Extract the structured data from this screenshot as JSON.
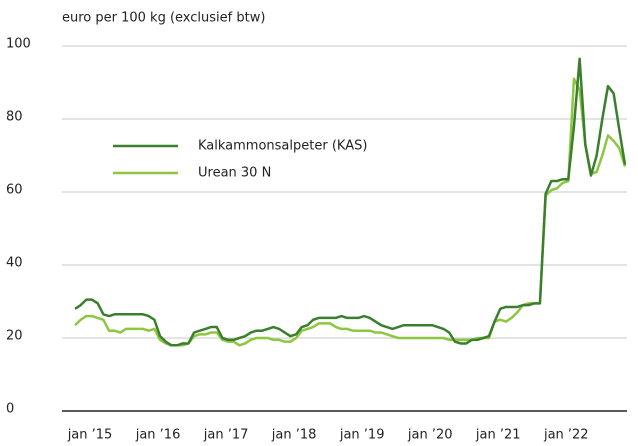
{
  "chart_data": {
    "type": "line",
    "ylabel": "euro per 100 kg (exclusief btw)",
    "categories": [
      "jan ’15",
      null,
      null,
      null,
      null,
      null,
      null,
      null,
      null,
      null,
      null,
      null,
      "jan ’16",
      null,
      null,
      null,
      null,
      null,
      null,
      null,
      null,
      null,
      null,
      null,
      "jan ’17",
      null,
      null,
      null,
      null,
      null,
      null,
      null,
      null,
      null,
      null,
      null,
      "jan ’18",
      null,
      null,
      null,
      null,
      null,
      null,
      null,
      null,
      null,
      null,
      null,
      "jan ’19",
      null,
      null,
      null,
      null,
      null,
      null,
      null,
      null,
      null,
      null,
      null,
      "jan ’20",
      null,
      null,
      null,
      null,
      null,
      null,
      null,
      null,
      null,
      null,
      null,
      "jan ’21",
      null,
      null,
      null,
      null,
      null,
      null,
      null,
      null,
      null,
      null,
      null,
      "jan ’22",
      null,
      null,
      null,
      null,
      null,
      null,
      null,
      null,
      null,
      null,
      null,
      null,
      null
    ],
    "series": [
      {
        "name": "Kalkammonsalpeter (KAS)",
        "color": "#3b7f2e",
        "values": [
          28,
          29,
          30.5,
          30.5,
          29.5,
          26.5,
          26,
          26.5,
          26.5,
          26.5,
          26.5,
          26.5,
          26.5,
          26,
          25,
          20.5,
          19,
          18,
          18,
          18.5,
          18.5,
          21.5,
          22,
          22.5,
          23,
          23,
          20,
          19.5,
          19.5,
          20,
          20.5,
          21.5,
          22,
          22,
          22.5,
          23,
          22.5,
          21.5,
          20.5,
          21,
          23,
          23.5,
          25,
          25.5,
          25.5,
          25.5,
          25.5,
          26,
          25.5,
          25.5,
          25.5,
          26,
          25.5,
          24.5,
          23.5,
          23,
          22.5,
          23,
          23.5,
          23.5,
          23.5,
          23.5,
          23.5,
          23.5,
          23,
          22.5,
          21.5,
          19,
          18.5,
          18.5,
          19.5,
          19.5,
          20,
          20.5,
          24.5,
          28,
          28.5,
          28.5,
          28.5,
          29,
          29,
          29.5,
          29.5,
          59.5,
          63,
          63,
          63.5,
          63.5,
          78,
          96.5,
          73,
          64.5,
          70,
          80,
          89,
          87,
          77,
          67.5
        ]
      },
      {
        "name": "Urean 30 N",
        "color": "#8dc63f",
        "values": [
          23.5,
          25,
          26,
          26,
          25.5,
          25,
          22,
          22,
          21.5,
          22.5,
          22.5,
          22.5,
          22.5,
          22,
          22.5,
          19.5,
          18.5,
          18,
          18,
          18,
          18.5,
          20.5,
          21,
          21,
          21.5,
          21.5,
          19.5,
          19,
          19,
          18,
          18.5,
          19.5,
          20,
          20,
          20,
          19.5,
          19.5,
          19,
          19,
          20,
          22,
          22.5,
          23,
          24,
          24,
          24,
          23,
          22.5,
          22.5,
          22,
          22,
          22,
          22,
          21.5,
          21.5,
          21,
          20.5,
          20,
          20,
          20,
          20,
          20,
          20,
          20,
          20,
          20,
          19.5,
          19.5,
          19.5,
          19.5,
          19.5,
          20,
          20,
          20,
          24.5,
          25,
          24.5,
          25.5,
          27,
          29,
          29.5,
          29.5,
          29.5,
          59,
          60.5,
          61,
          62.5,
          63,
          91,
          88,
          73,
          65,
          65.5,
          70,
          75.5,
          74,
          72,
          67
        ]
      }
    ],
    "ylim": [
      0,
      100
    ],
    "yticks": [
      0,
      20,
      40,
      60,
      80,
      100
    ],
    "grid": true,
    "legend": "upper left"
  }
}
